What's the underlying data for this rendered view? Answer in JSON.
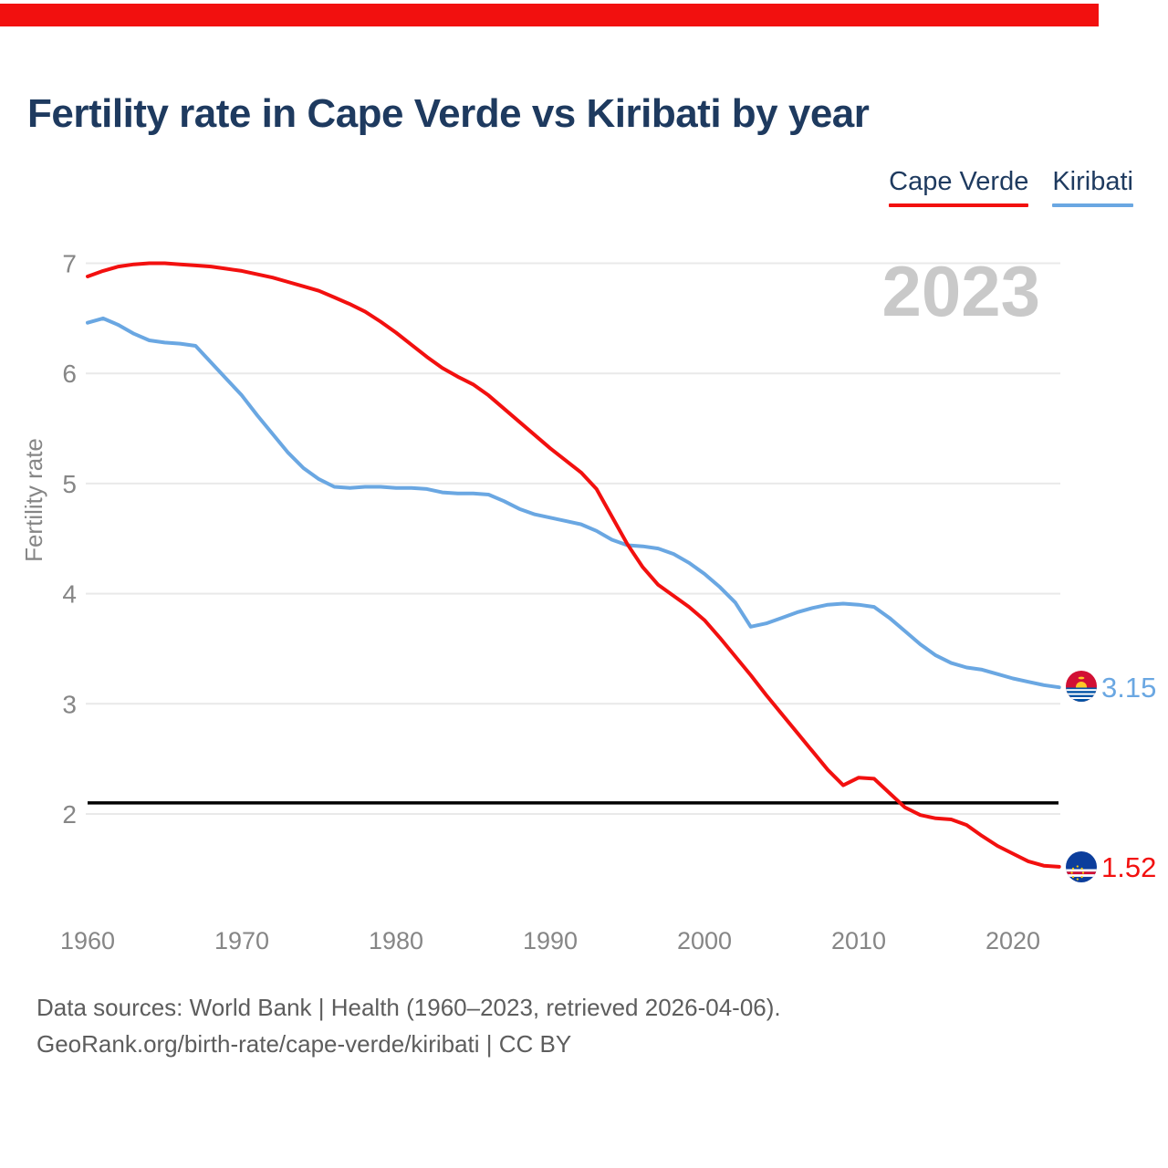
{
  "top_bar": {
    "color": "#f2100f"
  },
  "title": "Fertility rate in Cape Verde vs Kiribati by year",
  "legend": [
    {
      "label": "Cape Verde",
      "color": "#f2100f"
    },
    {
      "label": "Kiribati",
      "color": "#6aa7e2"
    }
  ],
  "watermark": "2023",
  "footer": {
    "line1": "Data sources: World Bank | Health (1960–2023, retrieved 2026-04-06).",
    "line2": "GeoRank.org/birth-rate/cape-verde/kiribati | CC BY"
  },
  "colors": {
    "accent_red": "#f2100f",
    "accent_blue": "#6aa7e2",
    "title_navy": "#1e3a5f",
    "grid": "#e9e9e9",
    "axis_text": "#868686",
    "watermark": "#c9c9c9",
    "reference_line": "#000000"
  },
  "chart_data": {
    "type": "line",
    "title": "Fertility rate in Cape Verde vs Kiribati by year",
    "xlabel": "",
    "ylabel": "Fertility rate",
    "x_ticks": [
      1960,
      1970,
      1980,
      1990,
      2000,
      2010,
      2020
    ],
    "y_ticks": [
      2,
      3,
      4,
      5,
      6,
      7
    ],
    "ylim": [
      1.45,
      7.15
    ],
    "xlim": [
      1960,
      2023
    ],
    "grid": "horizontal",
    "legend_position": "top-right",
    "reference_line": {
      "value": 2.1,
      "color": "#000000"
    },
    "x": [
      1960,
      1961,
      1962,
      1963,
      1964,
      1965,
      1966,
      1967,
      1968,
      1969,
      1970,
      1971,
      1972,
      1973,
      1974,
      1975,
      1976,
      1977,
      1978,
      1979,
      1980,
      1981,
      1982,
      1983,
      1984,
      1985,
      1986,
      1987,
      1988,
      1989,
      1990,
      1991,
      1992,
      1993,
      1994,
      1995,
      1996,
      1997,
      1998,
      1999,
      2000,
      2001,
      2002,
      2003,
      2004,
      2005,
      2006,
      2007,
      2008,
      2009,
      2010,
      2011,
      2012,
      2013,
      2014,
      2015,
      2016,
      2017,
      2018,
      2019,
      2020,
      2021,
      2022,
      2023
    ],
    "series": [
      {
        "name": "Kiribati",
        "color": "#6aa7e2",
        "end_label": "3.15",
        "end_value": 3.15,
        "values": [
          6.46,
          6.5,
          6.44,
          6.36,
          6.3,
          6.28,
          6.27,
          6.25,
          6.1,
          5.95,
          5.8,
          5.62,
          5.45,
          5.28,
          5.14,
          5.04,
          4.97,
          4.96,
          4.97,
          4.97,
          4.96,
          4.96,
          4.95,
          4.92,
          4.91,
          4.91,
          4.9,
          4.84,
          4.77,
          4.72,
          4.69,
          4.66,
          4.63,
          4.57,
          4.49,
          4.44,
          4.43,
          4.41,
          4.36,
          4.28,
          4.18,
          4.06,
          3.92,
          3.7,
          3.73,
          3.78,
          3.83,
          3.87,
          3.9,
          3.91,
          3.9,
          3.88,
          3.78,
          3.66,
          3.54,
          3.44,
          3.37,
          3.33,
          3.31,
          3.27,
          3.23,
          3.2,
          3.17,
          3.15
        ]
      },
      {
        "name": "Cape Verde",
        "color": "#f2100f",
        "end_label": "1.52",
        "end_value": 1.52,
        "values": [
          6.88,
          6.93,
          6.97,
          6.99,
          7.0,
          7.0,
          6.99,
          6.98,
          6.97,
          6.95,
          6.93,
          6.9,
          6.87,
          6.83,
          6.79,
          6.75,
          6.69,
          6.63,
          6.56,
          6.47,
          6.37,
          6.26,
          6.15,
          6.05,
          5.97,
          5.9,
          5.8,
          5.68,
          5.56,
          5.44,
          5.32,
          5.21,
          5.1,
          4.95,
          4.7,
          4.45,
          4.24,
          4.08,
          3.98,
          3.88,
          3.76,
          3.6,
          3.43,
          3.26,
          3.08,
          2.91,
          2.74,
          2.57,
          2.4,
          2.26,
          2.33,
          2.32,
          2.19,
          2.06,
          1.99,
          1.96,
          1.95,
          1.9,
          1.8,
          1.71,
          1.64,
          1.57,
          1.53,
          1.52
        ]
      }
    ]
  }
}
